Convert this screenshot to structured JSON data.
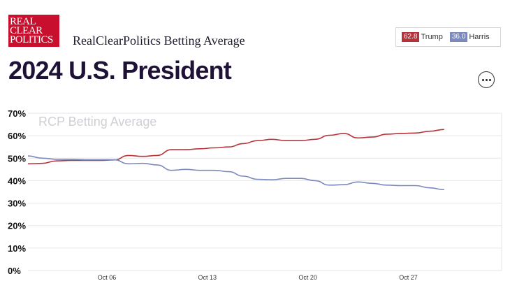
{
  "header": {
    "logo_lines": [
      "REAL",
      "CLEAR",
      "POLITICS"
    ],
    "brand": "RealClearPolitics Betting Average",
    "title": "2024 U.S. President",
    "more_icon": "ellipsis-icon"
  },
  "legend": [
    {
      "value": "62.8",
      "name": "Trump",
      "color": "#b8323a"
    },
    {
      "value": "36.0",
      "name": "Harris",
      "color": "#7b89bd"
    }
  ],
  "chart_data": {
    "type": "line",
    "title": "",
    "watermark": "RCP Betting Average",
    "xlabel": "",
    "ylabel": "",
    "ylim": [
      0,
      70
    ],
    "y_ticks": [
      "0%",
      "10%",
      "20%",
      "30%",
      "40%",
      "50%",
      "60%",
      "70%"
    ],
    "x_ticks": [
      {
        "day": 6,
        "label": "Oct 06"
      },
      {
        "day": 13,
        "label": "Oct 13"
      },
      {
        "day": 20,
        "label": "Oct 20"
      },
      {
        "day": 27,
        "label": "Oct 27"
      }
    ],
    "x_range": [
      0.5,
      33.5
    ],
    "grid": true,
    "series": [
      {
        "name": "Trump",
        "color": "#b8323a",
        "x": [
          0.5,
          1.5,
          2.5,
          3.5,
          4.5,
          5.5,
          6.5,
          7.5,
          8.5,
          9.5,
          10.5,
          11.5,
          12.5,
          13.5,
          14.5,
          15.5,
          16.5,
          17.5,
          18.5,
          19.5,
          20.5,
          21.5,
          22.5,
          23.5,
          24.5,
          25.5,
          26.5,
          27.5,
          28.5,
          29.5
        ],
        "values": [
          47.5,
          47.7,
          48.8,
          49.0,
          49.0,
          49.0,
          49.2,
          51.2,
          50.8,
          51.2,
          53.8,
          53.8,
          54.2,
          54.6,
          55.0,
          56.5,
          57.8,
          58.4,
          57.8,
          57.8,
          58.4,
          60.2,
          61.0,
          59.0,
          59.4,
          60.7,
          61.0,
          61.2,
          62.0,
          62.8
        ]
      },
      {
        "name": "Harris",
        "color": "#7b89bd",
        "x": [
          0.5,
          1.5,
          2.5,
          3.5,
          4.5,
          5.5,
          6.5,
          7.5,
          8.5,
          9.5,
          10.5,
          11.5,
          12.5,
          13.5,
          14.5,
          15.5,
          16.5,
          17.5,
          18.5,
          19.5,
          20.5,
          21.5,
          22.5,
          23.5,
          24.5,
          25.5,
          26.5,
          27.5,
          28.5,
          29.5
        ],
        "values": [
          51.0,
          50.0,
          49.5,
          49.5,
          49.3,
          49.3,
          49.3,
          47.5,
          47.7,
          47.0,
          44.6,
          45.0,
          44.6,
          44.6,
          44.0,
          42.0,
          40.6,
          40.4,
          41.0,
          41.0,
          40.0,
          38.0,
          38.2,
          39.4,
          38.8,
          38.0,
          37.8,
          37.8,
          36.8,
          36.0
        ]
      }
    ]
  }
}
